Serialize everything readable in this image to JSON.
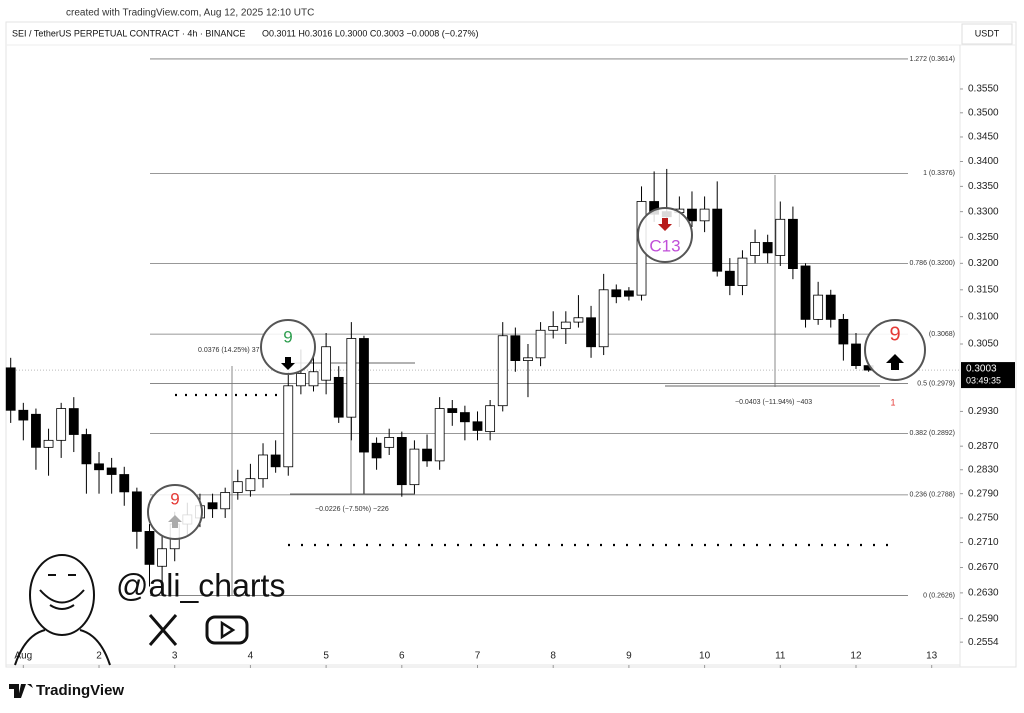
{
  "header": {
    "created": "created with TradingView.com, Aug 12, 2025 12:10 UTC",
    "symbol": "SEI / TetherUS PERPETUAL CONTRACT · 4h · BINANCE",
    "ohlc": "O0.3011 H0.3016 L0.3000 C0.3003 −0.0008 (−0.27%)",
    "currency": "USDT"
  },
  "chart_data": {
    "type": "candlestick",
    "log_scale": true,
    "grid": false,
    "up_color": "#ffffff",
    "down_color": "#000000",
    "border_color": "#000000",
    "x": [
      0.8333,
      1,
      1.1667,
      1.3333,
      1.5,
      1.6667,
      1.8333,
      2,
      2.1667,
      2.3333,
      2.5,
      2.6667,
      2.8333,
      3,
      3.1667,
      3.3333,
      3.5,
      3.6667,
      3.8333,
      4,
      4.1667,
      4.3333,
      4.5,
      4.6667,
      4.8333,
      5,
      5.1667,
      5.3333,
      5.5,
      5.6667,
      5.8333,
      6,
      6.1667,
      6.3333,
      6.5,
      6.6667,
      6.8333,
      7,
      7.1667,
      7.3333,
      7.5,
      7.6667,
      7.8333,
      8,
      8.1667,
      8.3333,
      8.5,
      8.6667,
      8.8333,
      9,
      9.1667,
      9.3333,
      9.5,
      9.6667,
      9.8333,
      10,
      10.1667,
      10.3333,
      10.5,
      10.6667,
      10.8333,
      11,
      11.1667,
      11.3333,
      11.5,
      11.6667,
      11.8333,
      12,
      12.1667
    ],
    "open": [
      0.3007,
      0.2932,
      0.2925,
      0.2868,
      0.288,
      0.2935,
      0.289,
      0.284,
      0.2833,
      0.2822,
      0.2793,
      0.2728,
      0.2672,
      0.27,
      0.274,
      0.275,
      0.2775,
      0.2765,
      0.2792,
      0.2795,
      0.2815,
      0.2855,
      0.2835,
      0.2975,
      0.2975,
      0.2985,
      0.299,
      0.292,
      0.306,
      0.2875,
      0.2868,
      0.2885,
      0.2805,
      0.2865,
      0.2845,
      0.2935,
      0.2928,
      0.2912,
      0.2895,
      0.294,
      0.3065,
      0.302,
      0.3025,
      0.3075,
      0.3078,
      0.309,
      0.3098,
      0.3045,
      0.315,
      0.3148,
      0.314,
      0.332,
      0.33,
      0.3298,
      0.3305,
      0.3282,
      0.3305,
      0.3185,
      0.3158,
      0.3215,
      0.324,
      0.3215,
      0.3285,
      0.3195,
      0.3095,
      0.314,
      0.3095,
      0.305,
      0.3011
    ],
    "high": [
      0.3025,
      0.2945,
      0.2935,
      0.29,
      0.2945,
      0.2955,
      0.29,
      0.286,
      0.285,
      0.2835,
      0.28,
      0.274,
      0.272,
      0.276,
      0.2775,
      0.279,
      0.279,
      0.28,
      0.283,
      0.284,
      0.2875,
      0.288,
      0.3,
      0.304,
      0.303,
      0.307,
      0.301,
      0.309,
      0.3065,
      0.2885,
      0.29,
      0.2895,
      0.288,
      0.289,
      0.2955,
      0.295,
      0.294,
      0.293,
      0.295,
      0.309,
      0.308,
      0.305,
      0.309,
      0.311,
      0.311,
      0.314,
      0.312,
      0.318,
      0.316,
      0.3155,
      0.335,
      0.338,
      0.3385,
      0.333,
      0.334,
      0.333,
      0.336,
      0.321,
      0.3225,
      0.3265,
      0.3255,
      0.332,
      0.331,
      0.32,
      0.3165,
      0.315,
      0.3105,
      0.307,
      0.3016
    ],
    "low": [
      0.291,
      0.288,
      0.283,
      0.282,
      0.285,
      0.286,
      0.279,
      0.279,
      0.279,
      0.277,
      0.27,
      0.264,
      0.2635,
      0.268,
      0.272,
      0.2735,
      0.275,
      0.275,
      0.278,
      0.2785,
      0.28,
      0.2825,
      0.282,
      0.296,
      0.2965,
      0.296,
      0.291,
      0.288,
      0.279,
      0.283,
      0.2855,
      0.2785,
      0.279,
      0.2835,
      0.283,
      0.2905,
      0.288,
      0.288,
      0.288,
      0.293,
      0.3,
      0.2955,
      0.301,
      0.306,
      0.305,
      0.308,
      0.3025,
      0.303,
      0.3125,
      0.313,
      0.313,
      0.328,
      0.327,
      0.327,
      0.327,
      0.326,
      0.3175,
      0.314,
      0.314,
      0.32,
      0.32,
      0.3195,
      0.317,
      0.308,
      0.3085,
      0.308,
      0.302,
      0.3005,
      0.3
    ],
    "close": [
      0.2932,
      0.2915,
      0.2868,
      0.288,
      0.2935,
      0.289,
      0.284,
      0.283,
      0.2822,
      0.2793,
      0.2728,
      0.2675,
      0.27,
      0.274,
      0.2755,
      0.277,
      0.2765,
      0.2792,
      0.281,
      0.2815,
      0.2855,
      0.2835,
      0.2975,
      0.2997,
      0.3,
      0.3045,
      0.292,
      0.306,
      0.286,
      0.285,
      0.2885,
      0.2805,
      0.2865,
      0.2845,
      0.2935,
      0.2928,
      0.2912,
      0.2897,
      0.294,
      0.3065,
      0.302,
      0.3025,
      0.3075,
      0.3082,
      0.309,
      0.3098,
      0.3045,
      0.315,
      0.3137,
      0.3138,
      0.332,
      0.3295,
      0.329,
      0.3305,
      0.3282,
      0.3305,
      0.3185,
      0.3158,
      0.321,
      0.324,
      0.322,
      0.3285,
      0.319,
      0.3095,
      0.314,
      0.3095,
      0.305,
      0.3011,
      0.3003
    ],
    "xlim": [
      0.824,
      13.374
    ],
    "xticks": [
      {
        "value": 1,
        "label": "Aug"
      },
      2,
      3,
      4,
      5,
      6,
      7,
      8,
      9,
      10,
      11,
      12,
      13
    ],
    "ylim": [
      0.2527,
      0.3655
    ],
    "yticks": [
      {
        "value": 0.355,
        "label": "0.3550"
      },
      {
        "value": 0.35,
        "label": "0.3500"
      },
      {
        "value": 0.345,
        "label": "0.3450"
      },
      {
        "value": 0.34,
        "label": "0.3400"
      },
      {
        "value": 0.335,
        "label": "0.3350"
      },
      {
        "value": 0.33,
        "label": "0.3300"
      },
      {
        "value": 0.325,
        "label": "0.3250"
      },
      {
        "value": 0.32,
        "label": "0.3200"
      },
      {
        "value": 0.315,
        "label": "0.3150"
      },
      {
        "value": 0.31,
        "label": "0.3100"
      },
      {
        "value": 0.305,
        "label": "0.3050"
      },
      {
        "value": 0.293,
        "label": "0.2930"
      },
      {
        "value": 0.287,
        "label": "0.2870"
      },
      {
        "value": 0.283,
        "label": "0.2830"
      },
      {
        "value": 0.279,
        "label": "0.2790"
      },
      {
        "value": 0.275,
        "label": "0.2750"
      },
      {
        "value": 0.271,
        "label": "0.2710"
      },
      {
        "value": 0.267,
        "label": "0.2670"
      },
      {
        "value": 0.263,
        "label": "0.2630"
      },
      {
        "value": 0.259,
        "label": "0.2590"
      },
      {
        "value": 0.2554,
        "label": "0.2554"
      }
    ],
    "last_price": {
      "value": 0.3003,
      "label": "0.3003"
    },
    "countdown": "03:49:35",
    "fib_levels": [
      {
        "value": 0.3614,
        "label": "1.272 (0.3614)"
      },
      {
        "value": 0.3376,
        "label": "1 (0.3376)"
      },
      {
        "value": 0.32,
        "label": "0.786 (0.3200)"
      },
      {
        "value": 0.3068,
        "label": "(0.3068)"
      },
      {
        "value": 0.2979,
        "label": "0.5 (0.2979)"
      },
      {
        "value": 0.2892,
        "label": "0.382 (0.2892)"
      },
      {
        "value": 0.2788,
        "label": "0.236 (0.2788)"
      },
      {
        "value": 0.2626,
        "label": "0 (0.2626)"
      }
    ],
    "measures": [
      "0.0376 (14.25%) 37",
      "−0.0226 (−7.50%) −226",
      "−0.0403 (−11.94%) −403"
    ],
    "td_counts": [
      "9",
      "9",
      "C13",
      "9",
      "1"
    ],
    "watermark": "@ali_charts"
  },
  "footer": {
    "brand": "TradingView"
  }
}
